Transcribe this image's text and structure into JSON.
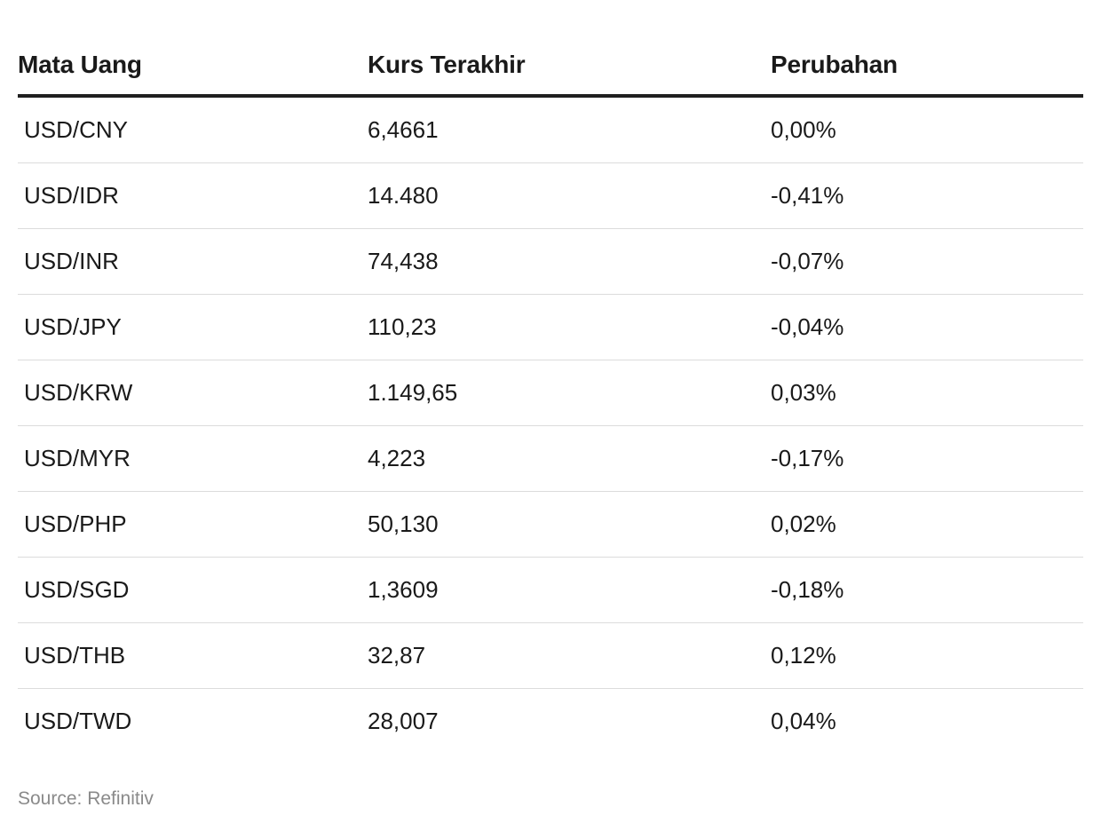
{
  "table": {
    "headers": [
      "Mata Uang",
      "Kurs Terakhir",
      "Perubahan"
    ],
    "rows": [
      [
        "USD/CNY",
        "6,4661",
        "0,00%"
      ],
      [
        "USD/IDR",
        "14.480",
        "-0,41%"
      ],
      [
        "USD/INR",
        "74,438",
        "-0,07%"
      ],
      [
        "USD/JPY",
        "110,23",
        "-0,04%"
      ],
      [
        "USD/KRW",
        "1.149,65",
        "0,03%"
      ],
      [
        "USD/MYR",
        "4,223",
        "-0,17%"
      ],
      [
        "USD/PHP",
        "50,130",
        "0,02%"
      ],
      [
        "USD/SGD",
        "1,3609",
        "-0,18%"
      ],
      [
        "USD/THB",
        "32,87",
        "0,12%"
      ],
      [
        "USD/TWD",
        "28,007",
        "0,04%"
      ]
    ]
  },
  "footer": {
    "source": "Source: Refinitiv"
  }
}
